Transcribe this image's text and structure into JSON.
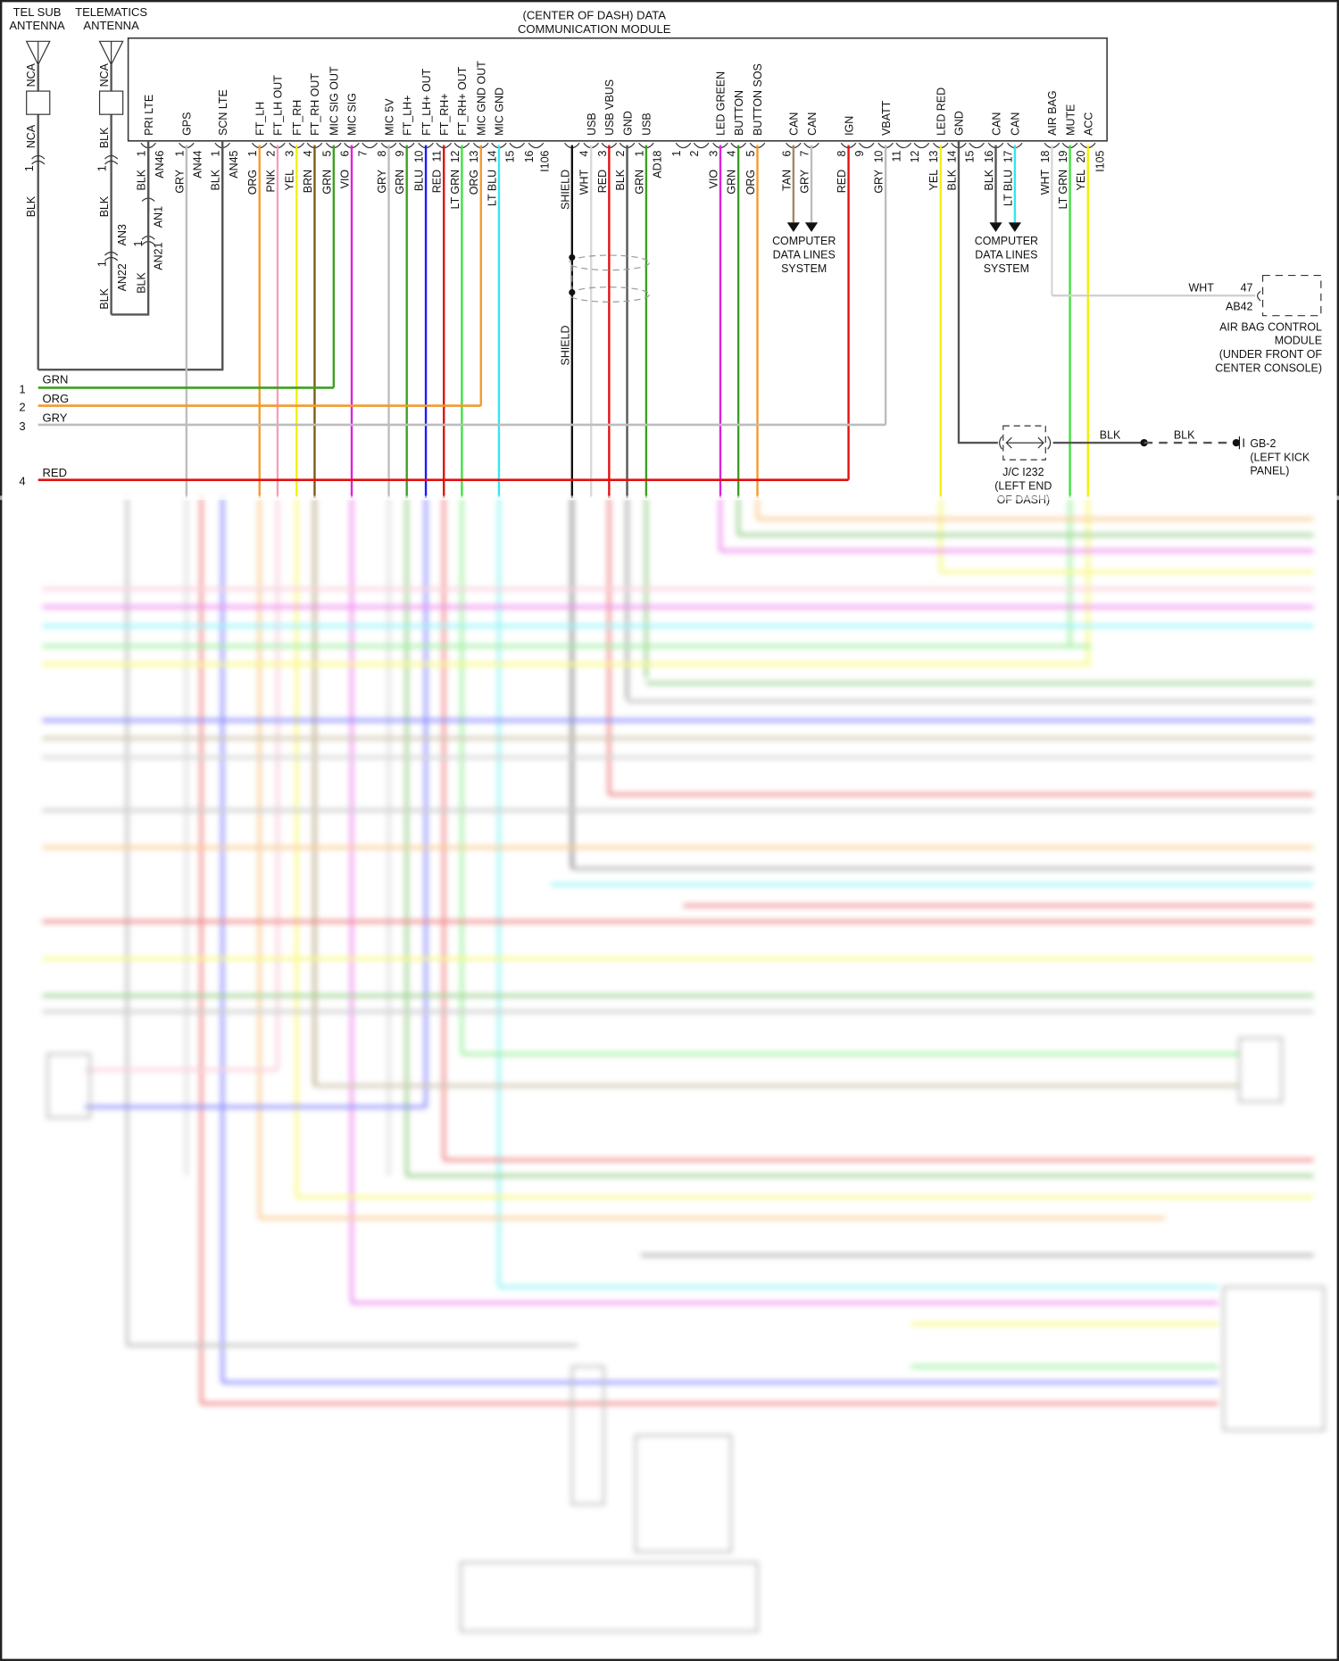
{
  "module": {
    "title_line1": "(CENTER OF DASH) DATA",
    "title_line2": "COMMUNICATION MODULE"
  },
  "antennas": {
    "tel_sub": {
      "line1": "TEL SUB",
      "line2": "ANTENNA",
      "top_wire": "NCA",
      "bottom_wire": "NCA",
      "pin": "1",
      "lead": "BLK"
    },
    "telematics": {
      "line1": "TELEMATICS",
      "line2": "ANTENNA",
      "top_wire": "NCA",
      "bottom_wire": "BLK",
      "pin": "1",
      "lead": "BLK",
      "an3": "AN3",
      "an3_pin": "1",
      "an22": "AN22",
      "an22_lead": "BLK",
      "an21": "AN21",
      "an21_pin": "1",
      "an21_lead": "BLK",
      "an1": "AN1"
    }
  },
  "antenna_connectors": [
    {
      "func": "PRI LTE",
      "num": "1",
      "color": "BLK",
      "connector": "AN46",
      "hex": "#555555"
    },
    {
      "func": "GPS",
      "num": "1",
      "color": "GRY",
      "connector": "AN44",
      "hex": "#bdbdbd"
    },
    {
      "func": "SCN LTE",
      "num": "1",
      "color": "BLK",
      "connector": "AN45",
      "hex": "#555555"
    }
  ],
  "connector_i106": {
    "name": "I106",
    "pins": [
      {
        "num": "1",
        "color": "ORG",
        "func": "FT_LH",
        "hex": "#f39a2b"
      },
      {
        "num": "2",
        "color": "PNK",
        "func": "FT_LH OUT",
        "hex": "#f4a0b8"
      },
      {
        "num": "3",
        "color": "YEL",
        "func": "FT_RH",
        "hex": "#f2f200"
      },
      {
        "num": "4",
        "color": "BRN",
        "func": "FT_RH OUT",
        "hex": "#7a5a10"
      },
      {
        "num": "5",
        "color": "GRN",
        "func": "MIC SIG OUT",
        "hex": "#3aa020"
      },
      {
        "num": "6",
        "color": "VIO",
        "func": "MIC SIG",
        "hex": "#e020e0"
      },
      {
        "num": "7",
        "color": "",
        "func": "",
        "hex": ""
      },
      {
        "num": "8",
        "color": "GRY",
        "func": "MIC 5V",
        "hex": "#bdbdbd"
      },
      {
        "num": "9",
        "color": "GRN",
        "func": "FT_LH+",
        "hex": "#3aa020"
      },
      {
        "num": "10",
        "color": "BLU",
        "func": "FT_LH+ OUT",
        "hex": "#1a1aff"
      },
      {
        "num": "11",
        "color": "RED",
        "func": "FT_RH+",
        "hex": "#e01010"
      },
      {
        "num": "12",
        "color": "LT GRN",
        "func": "FT_RH+ OUT",
        "hex": "#40e040"
      },
      {
        "num": "13",
        "color": "ORG",
        "func": "MIC GND OUT",
        "hex": "#f39a2b"
      },
      {
        "num": "14",
        "color": "LT BLU",
        "func": "MIC GND",
        "hex": "#30e8f0"
      },
      {
        "num": "15",
        "color": "",
        "func": "",
        "hex": ""
      },
      {
        "num": "16",
        "color": "",
        "func": "",
        "hex": ""
      }
    ]
  },
  "connector_ad18": {
    "name": "AD18",
    "shield": "SHIELD",
    "pins": [
      {
        "num": "4",
        "color": "WHT",
        "func": "USB",
        "hex": "#d8d8d8"
      },
      {
        "num": "3",
        "color": "RED",
        "func": "USB VBUS",
        "hex": "#e01010"
      },
      {
        "num": "2",
        "color": "BLK",
        "func": "GND",
        "hex": "#555555"
      },
      {
        "num": "1",
        "color": "GRN",
        "func": "USB",
        "hex": "#3aa020"
      }
    ]
  },
  "connector_i105": {
    "name": "I105",
    "pins": [
      {
        "num": "1",
        "color": "",
        "func": "",
        "hex": ""
      },
      {
        "num": "2",
        "color": "",
        "func": "",
        "hex": ""
      },
      {
        "num": "3",
        "color": "VIO",
        "func": "LED GREEN",
        "hex": "#e020e0"
      },
      {
        "num": "4",
        "color": "GRN",
        "func": "BUTTON",
        "hex": "#3aa020"
      },
      {
        "num": "5",
        "color": "ORG",
        "func": "BUTTON SOS",
        "hex": "#f39a2b"
      },
      {
        "num": "6",
        "color": "TAN",
        "func": "CAN",
        "hex": "#a08a60"
      },
      {
        "num": "7",
        "color": "GRY",
        "func": "CAN",
        "hex": "#bdbdbd"
      },
      {
        "num": "8",
        "color": "RED",
        "func": "IGN",
        "hex": "#e01010"
      },
      {
        "num": "9",
        "color": "",
        "func": "",
        "hex": ""
      },
      {
        "num": "10",
        "color": "GRY",
        "func": "VBATT",
        "hex": "#bdbdbd"
      },
      {
        "num": "11",
        "color": "",
        "func": "",
        "hex": ""
      },
      {
        "num": "12",
        "color": "",
        "func": "",
        "hex": ""
      },
      {
        "num": "13",
        "color": "YEL",
        "func": "LED RED",
        "hex": "#f2f200"
      },
      {
        "num": "14",
        "color": "BLK",
        "func": "GND",
        "hex": "#555555"
      },
      {
        "num": "15",
        "color": "",
        "func": "",
        "hex": ""
      },
      {
        "num": "16",
        "color": "BLK",
        "func": "CAN",
        "hex": "#555555"
      },
      {
        "num": "17",
        "color": "LT BLU",
        "func": "CAN",
        "hex": "#30e8f0"
      },
      {
        "num": "18",
        "color": "WHT",
        "func": "AIR BAG",
        "hex": "#d8d8d8"
      },
      {
        "num": "19",
        "color": "LT GRN",
        "func": "MUTE",
        "hex": "#40e040"
      },
      {
        "num": "20",
        "color": "YEL",
        "func": "ACC",
        "hex": "#f2f200"
      }
    ]
  },
  "data_lines": {
    "line1": "COMPUTER",
    "line2": "DATA LINES",
    "line3": "SYSTEM"
  },
  "side_rows": [
    {
      "num": "1",
      "color": "GRN"
    },
    {
      "num": "2",
      "color": "ORG"
    },
    {
      "num": "3",
      "color": "GRY"
    },
    {
      "num": "4",
      "color": "RED"
    }
  ],
  "airbag": {
    "wire": "WHT",
    "pin": "47",
    "connector": "AB42",
    "line1": "AIR BAG CONTROL",
    "line2": "MODULE",
    "line3": "(UNDER FRONT OF",
    "line4": "CENTER CONSOLE)"
  },
  "ground": {
    "wire1": "BLK",
    "wire2": "BLK",
    "name": "GB-2",
    "line2": "(LEFT KICK",
    "line3": "PANEL)",
    "jc": "J/C I232",
    "jc_line2": "(LEFT END",
    "jc_line3": "OF DASH)"
  }
}
